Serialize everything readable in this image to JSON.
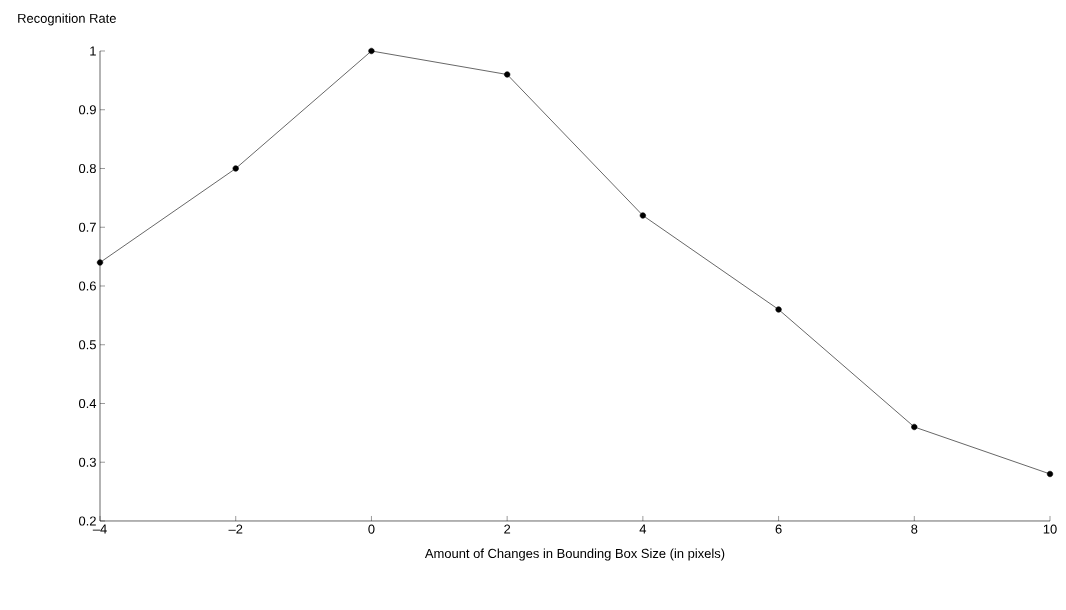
{
  "chart_data": {
    "type": "line",
    "xlabel": "Amount of Changes in Bounding Box Size (in pixels)",
    "ylabel": "Recognition Rate",
    "x": [
      -4,
      -2,
      0,
      2,
      4,
      6,
      8,
      10
    ],
    "series": [
      {
        "color": "#000000",
        "values": [
          0.64,
          0.8,
          1.0,
          0.96,
          0.72,
          0.56,
          0.36,
          0.28
        ]
      }
    ],
    "xlim": [
      -4,
      10
    ],
    "ylim": [
      0.2,
      1
    ],
    "xticks": [
      {
        "value": -4,
        "label": "–4"
      },
      {
        "value": -2,
        "label": "–2"
      },
      0,
      2,
      4,
      6,
      8,
      10
    ],
    "yticks": [
      0.2,
      0.3,
      0.4,
      0.5,
      0.6,
      0.7,
      0.8,
      0.9,
      1
    ],
    "grid": false,
    "marker": "circle",
    "line_style": "solid"
  }
}
